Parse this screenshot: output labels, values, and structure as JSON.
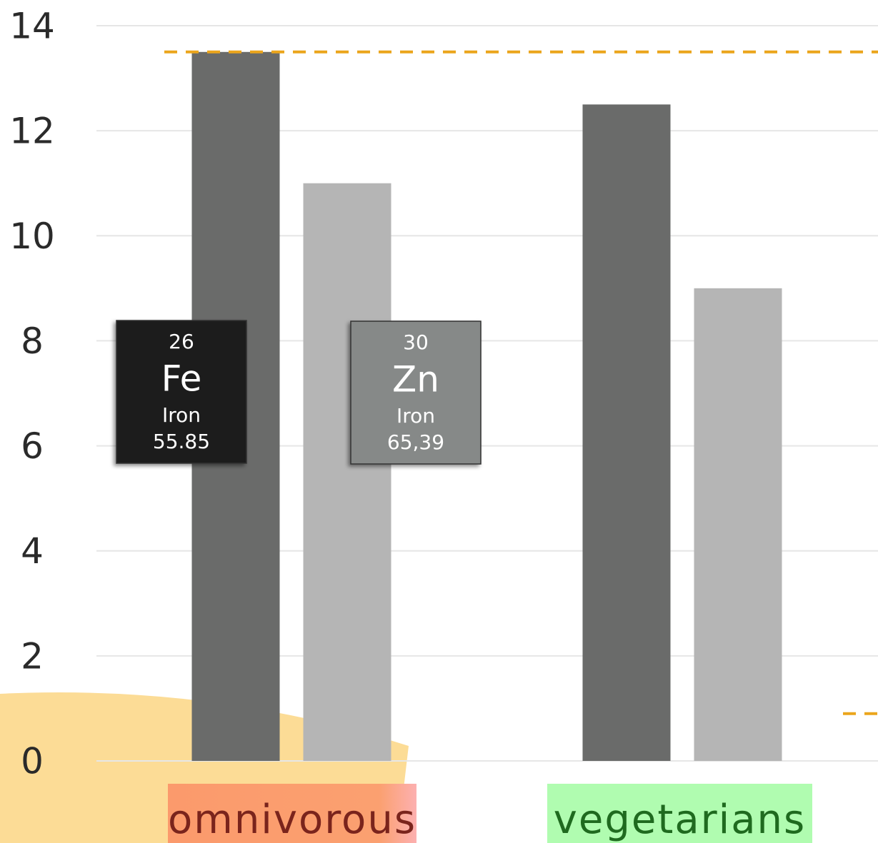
{
  "chart_data": {
    "type": "bar",
    "categories": [
      "omnivorous",
      "vegetarians"
    ],
    "category_colors": [
      "#fb9a6c",
      "#b0fcb0"
    ],
    "category_text_colors": [
      "#7a241c",
      "#1f6a1f"
    ],
    "series": [
      {
        "color": "#6a6b6a",
        "values": [
          13.5,
          12.5
        ]
      },
      {
        "color": "#b5b5b5",
        "values": [
          11,
          9
        ]
      }
    ],
    "ylim": [
      0,
      14
    ],
    "yticks": [
      0,
      2,
      4,
      6,
      8,
      10,
      12,
      14
    ],
    "grid": true,
    "reference_lines": [
      13.5,
      0.9
    ],
    "reference_color": "#eba51c",
    "tiles": [
      {
        "number": "26",
        "symbol": "Fe",
        "name": "Iron",
        "mass": "55.85",
        "color": "#1c1e1d"
      },
      {
        "number": "30",
        "symbol": "Zn",
        "name": "Iron",
        "mass": "65,39",
        "color": "#868988"
      }
    ]
  }
}
